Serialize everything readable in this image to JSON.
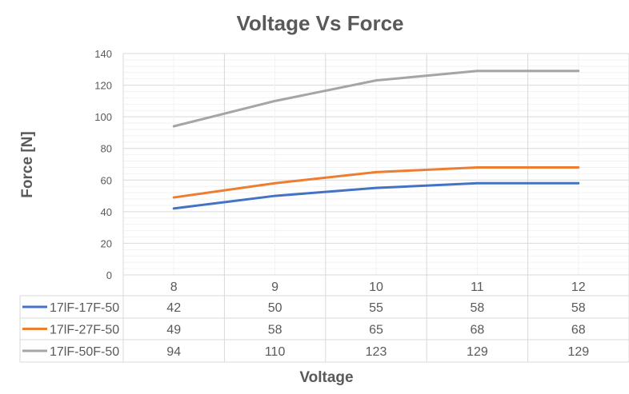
{
  "chart_data": {
    "type": "line",
    "title": "Voltage Vs Force",
    "xlabel": "Voltage",
    "ylabel": "Force [N]",
    "categories": [
      "8",
      "9",
      "10",
      "11",
      "12"
    ],
    "ylim": [
      0,
      140
    ],
    "ytick_step": 20,
    "yticks": [
      "0",
      "20",
      "40",
      "60",
      "80",
      "100",
      "120",
      "140"
    ],
    "grid": true,
    "legend": "data-table",
    "series": [
      {
        "name": "17lF-17F-50",
        "values": [
          42,
          50,
          55,
          58,
          58
        ],
        "color": "#4472C4"
      },
      {
        "name": "17lF-27F-50",
        "values": [
          49,
          58,
          65,
          68,
          68
        ],
        "color": "#ED7D31"
      },
      {
        "name": "17lF-50F-50",
        "values": [
          94,
          110,
          123,
          129,
          129
        ],
        "color": "#A5A5A5"
      }
    ]
  }
}
